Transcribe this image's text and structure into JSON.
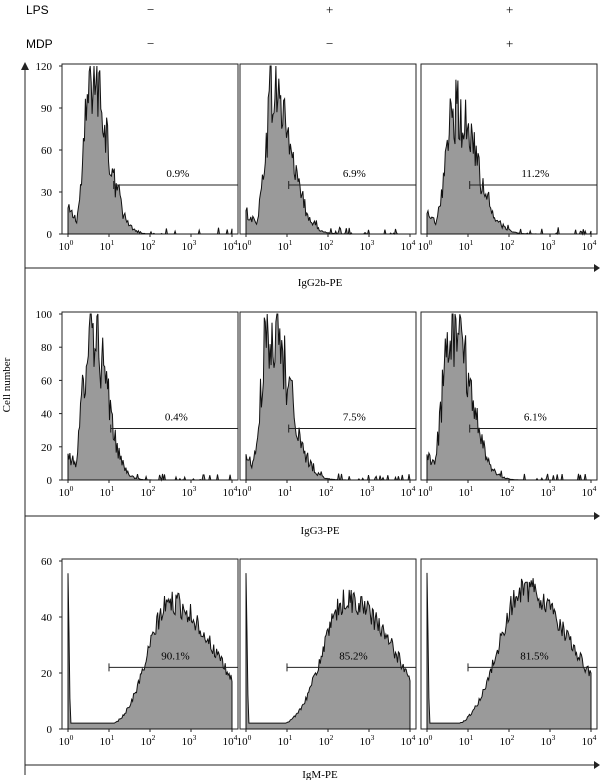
{
  "header": {
    "rows": [
      {
        "label": "LPS",
        "values": [
          "−",
          "+",
          "+"
        ]
      },
      {
        "label": "MDP",
        "values": [
          "−",
          "−",
          "+"
        ]
      }
    ]
  },
  "ylabel": "Cell number",
  "colors": {
    "fill": "#9a9a9a",
    "line": "#111111",
    "gate": "#222222",
    "axis": "#222222"
  },
  "chart_data": [
    {
      "type": "area",
      "xlabel": "IgG2b-PE",
      "ylim": [
        0,
        120
      ],
      "yticks": [
        0,
        30,
        60,
        90,
        120
      ],
      "xscale": "log",
      "xlim": [
        1,
        10000
      ],
      "xtick_labels": [
        "10^0",
        "10^1",
        "10^2",
        "10^3",
        "10^4"
      ],
      "panels": [
        {
          "gate": "0.9%",
          "gate_start": 13,
          "peak_x": 3.8,
          "peak_y": 115,
          "spread": 0.17,
          "tail": 0.35,
          "noise": 0.3
        },
        {
          "gate": "6.9%",
          "gate_start": 11,
          "peak_x": 4.5,
          "peak_y": 103,
          "spread": 0.18,
          "tail": 0.42,
          "noise": 0.3
        },
        {
          "gate": "11.2%",
          "gate_start": 11,
          "peak_x": 5.0,
          "peak_y": 90,
          "spread": 0.22,
          "tail": 0.45,
          "noise": 0.3
        }
      ]
    },
    {
      "type": "area",
      "xlabel": "IgG3-PE",
      "ylim": [
        0,
        100
      ],
      "yticks": [
        0,
        20,
        40,
        60,
        80,
        100
      ],
      "xscale": "log",
      "xlim": [
        1,
        10000
      ],
      "xtick_labels": [
        "10^0",
        "10^1",
        "10^2",
        "10^3",
        "10^4"
      ],
      "panels": [
        {
          "gate": "0.4%",
          "gate_start": 11,
          "peak_x": 3.5,
          "peak_y": 97,
          "spread": 0.17,
          "tail": 0.33,
          "noise": 0.32
        },
        {
          "gate": "7.5%",
          "gate_start": 11,
          "peak_x": 3.8,
          "peak_y": 95,
          "spread": 0.19,
          "tail": 0.45,
          "noise": 0.32
        },
        {
          "gate": "6.1%",
          "gate_start": 11,
          "peak_x": 3.8,
          "peak_y": 94,
          "spread": 0.19,
          "tail": 0.43,
          "noise": 0.32
        }
      ]
    },
    {
      "type": "area",
      "xlabel": "IgM-PE",
      "ylim": [
        0,
        60
      ],
      "yticks": [
        0,
        20,
        40,
        60
      ],
      "xscale": "log",
      "xlim": [
        1,
        10000
      ],
      "xtick_labels": [
        "10^0",
        "10^1",
        "10^2",
        "10^3",
        "10^4"
      ],
      "panels": [
        {
          "gate": "90.1%",
          "gate_start": 10,
          "peak_x": 320,
          "peak_y": 45,
          "spread": 0.55,
          "tail": 0.9,
          "noise": 0.1
        },
        {
          "gate": "85.2%",
          "gate_start": 10,
          "peak_x": 300,
          "peak_y": 46,
          "spread": 0.6,
          "tail": 0.9,
          "noise": 0.1
        },
        {
          "gate": "81.5%",
          "gate_start": 10,
          "peak_x": 240,
          "peak_y": 50,
          "spread": 0.62,
          "tail": 0.9,
          "noise": 0.1
        }
      ]
    }
  ]
}
